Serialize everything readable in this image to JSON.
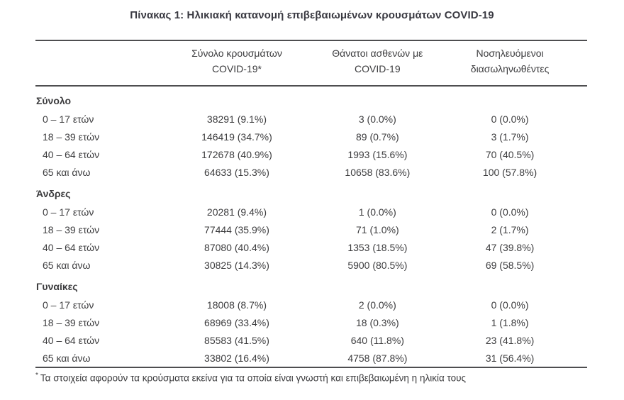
{
  "title": "Πίνακας 1: Ηλικιακή κατανομή επιβεβαιωμένων κρουσμάτων COVID-19",
  "colors": {
    "text": "#3c3c3e",
    "rule": "#4e4e50",
    "background": "#ffffff"
  },
  "footnote": {
    "marker": "*",
    "text": "Τα στοιχεία αφορούν τα κρούσματα εκείνα για τα οποία είναι γνωστή και επιβεβαιωμένη η ηλικία τους"
  },
  "chart_data": {
    "type": "table",
    "title": "Πίνακας 1: Ηλικιακή κατανομή επιβεβαιωμένων κρουσμάτων COVID-19",
    "column_headers": [
      {
        "line1": "Σύνολο κρουσμάτων",
        "line2": "COVID-19*"
      },
      {
        "line1": "Θάνατοι ασθενών με",
        "line2": "COVID-19"
      },
      {
        "line1": "Νοσηλευόμενοι",
        "line2": "διασωληνωθέντες"
      }
    ],
    "groups": [
      {
        "label": "Σύνολο",
        "rows": [
          {
            "label": "0 – 17 ετών",
            "cases": 38291,
            "cases_pct": 9.1,
            "deaths": 3,
            "deaths_pct": 0.0,
            "intubated": 0,
            "intubated_pct": 0.0
          },
          {
            "label": "18 – 39 ετών",
            "cases": 146419,
            "cases_pct": 34.7,
            "deaths": 89,
            "deaths_pct": 0.7,
            "intubated": 3,
            "intubated_pct": 1.7
          },
          {
            "label": "40 – 64 ετών",
            "cases": 172678,
            "cases_pct": 40.9,
            "deaths": 1993,
            "deaths_pct": 15.6,
            "intubated": 70,
            "intubated_pct": 40.5
          },
          {
            "label": "65 και άνω",
            "cases": 64633,
            "cases_pct": 15.3,
            "deaths": 10658,
            "deaths_pct": 83.6,
            "intubated": 100,
            "intubated_pct": 57.8
          }
        ]
      },
      {
        "label": "Άνδρες",
        "rows": [
          {
            "label": "0 – 17 ετών",
            "cases": 20281,
            "cases_pct": 9.4,
            "deaths": 1,
            "deaths_pct": 0.0,
            "intubated": 0,
            "intubated_pct": 0.0
          },
          {
            "label": "18 – 39 ετών",
            "cases": 77444,
            "cases_pct": 35.9,
            "deaths": 71,
            "deaths_pct": 1.0,
            "intubated": 2,
            "intubated_pct": 1.7
          },
          {
            "label": "40 – 64 ετών",
            "cases": 87080,
            "cases_pct": 40.4,
            "deaths": 1353,
            "deaths_pct": 18.5,
            "intubated": 47,
            "intubated_pct": 39.8
          },
          {
            "label": "65 και άνω",
            "cases": 30825,
            "cases_pct": 14.3,
            "deaths": 5900,
            "deaths_pct": 80.5,
            "intubated": 69,
            "intubated_pct": 58.5
          }
        ]
      },
      {
        "label": "Γυναίκες",
        "rows": [
          {
            "label": "0 – 17 ετών",
            "cases": 18008,
            "cases_pct": 8.7,
            "deaths": 2,
            "deaths_pct": 0.0,
            "intubated": 0,
            "intubated_pct": 0.0
          },
          {
            "label": "18 – 39 ετών",
            "cases": 68969,
            "cases_pct": 33.4,
            "deaths": 18,
            "deaths_pct": 0.3,
            "intubated": 1,
            "intubated_pct": 1.8
          },
          {
            "label": "40 – 64 ετών",
            "cases": 85583,
            "cases_pct": 41.5,
            "deaths": 640,
            "deaths_pct": 11.8,
            "intubated": 23,
            "intubated_pct": 41.8
          },
          {
            "label": "65 και άνω",
            "cases": 33802,
            "cases_pct": 16.4,
            "deaths": 4758,
            "deaths_pct": 87.8,
            "intubated": 31,
            "intubated_pct": 56.4
          }
        ]
      }
    ],
    "value_format": "count (percent%)",
    "footnote": "* Τα στοιχεία αφορούν τα κρούσματα εκείνα για τα οποία είναι γνωστή και επιβεβαιωμένη η ηλικία τους"
  }
}
